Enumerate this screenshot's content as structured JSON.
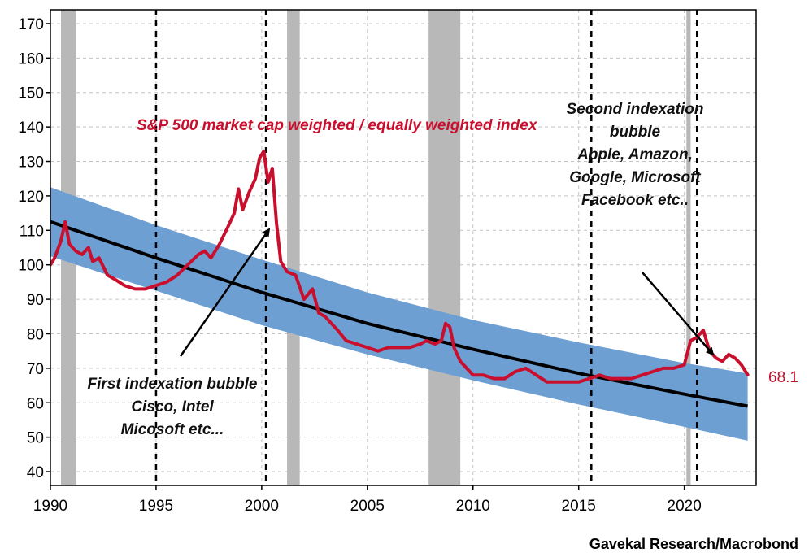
{
  "chart_data": {
    "type": "line",
    "title": "S&P 500 market cap weighted / equally weighted index",
    "source": "Gavekal Research/Macrobond",
    "xlim": [
      1990,
      2023.4
    ],
    "ylim": [
      36,
      174
    ],
    "x_ticks": [
      1990,
      1995,
      2000,
      2005,
      2010,
      2015,
      2020
    ],
    "y_ticks": [
      40,
      50,
      60,
      70,
      80,
      90,
      100,
      110,
      120,
      130,
      140,
      150,
      160,
      170
    ],
    "grid": true,
    "recessions": [
      [
        1990.5,
        1991.2
      ],
      [
        2001.2,
        2001.8
      ],
      [
        2007.9,
        2009.4
      ],
      [
        2020.1,
        2020.3
      ]
    ],
    "dashed_markers": [
      1995.0,
      2000.2,
      2015.6,
      2020.6
    ],
    "colors": {
      "index_line": "#c8102e",
      "trend_line": "#000000",
      "band": "#6e9fd3",
      "recession": "#b8b8b8"
    },
    "trend": {
      "x": [
        1990,
        1995,
        2000,
        2005,
        2010,
        2015,
        2020,
        2023
      ],
      "center": [
        112.5,
        102.0,
        92.0,
        83.0,
        75.5,
        68.5,
        62.5,
        59.0
      ],
      "upper": [
        122.5,
        111.5,
        101.5,
        92.0,
        84.0,
        77.5,
        71.5,
        68.5
      ],
      "lower": [
        102.5,
        92.5,
        82.5,
        74.0,
        66.5,
        59.5,
        53.0,
        49.0
      ]
    },
    "series": [
      {
        "name": "S&P 500 market cap weighted / equally weighted index",
        "x": [
          1990.0,
          1990.2,
          1990.5,
          1990.7,
          1990.9,
          1991.2,
          1991.5,
          1991.8,
          1992.0,
          1992.3,
          1992.7,
          1993.0,
          1993.5,
          1994.0,
          1994.5,
          1995.0,
          1995.5,
          1996.0,
          1996.5,
          1997.0,
          1997.3,
          1997.6,
          1998.0,
          1998.4,
          1998.7,
          1998.9,
          1999.1,
          1999.4,
          1999.7,
          1999.9,
          2000.1,
          2000.3,
          2000.5,
          2000.7,
          2000.9,
          2001.2,
          2001.6,
          2002.0,
          2002.4,
          2002.7,
          2003.0,
          2003.3,
          2003.6,
          2004.0,
          2004.5,
          2005.0,
          2005.5,
          2006.0,
          2006.5,
          2007.0,
          2007.5,
          2007.8,
          2008.2,
          2008.5,
          2008.7,
          2008.9,
          2009.1,
          2009.4,
          2009.7,
          2010.0,
          2010.5,
          2011.0,
          2011.5,
          2012.0,
          2012.5,
          2013.0,
          2013.5,
          2014.0,
          2014.5,
          2015.0,
          2015.5,
          2016.0,
          2016.5,
          2017.0,
          2017.5,
          2018.0,
          2018.5,
          2019.0,
          2019.5,
          2020.0,
          2020.3,
          2020.6,
          2020.9,
          2021.2,
          2021.5,
          2021.8,
          2022.1,
          2022.4,
          2022.7,
          2023.0
        ],
        "values": [
          100,
          102,
          107,
          112.5,
          106,
          104,
          103,
          105,
          101,
          102,
          97,
          96,
          94,
          93,
          93,
          94,
          95,
          97,
          100,
          103,
          104,
          102,
          106,
          111,
          115,
          122,
          116,
          121,
          125,
          131,
          133,
          124,
          128,
          112,
          101,
          98,
          97,
          90,
          93,
          86,
          85,
          83,
          81,
          78,
          77,
          76,
          75,
          76,
          76,
          76,
          77,
          78,
          77,
          78,
          83,
          82,
          76,
          72,
          70,
          68,
          68,
          67,
          67,
          69,
          70,
          68,
          66,
          66,
          66,
          66,
          67,
          68,
          67,
          67,
          67,
          68,
          69,
          70,
          70,
          71,
          78,
          79,
          81,
          75,
          73,
          72,
          74,
          73,
          71,
          68.1
        ]
      }
    ],
    "end_label": "68.1",
    "annotations": {
      "first_bubble": [
        "First indexation bubble",
        "Cisco, Intel",
        "Micosoft etc..."
      ],
      "second_bubble": [
        "Second indexation",
        "bubble",
        "Apple, Amazon,",
        "Google, Microsoft",
        "Facebook etc.."
      ]
    }
  }
}
